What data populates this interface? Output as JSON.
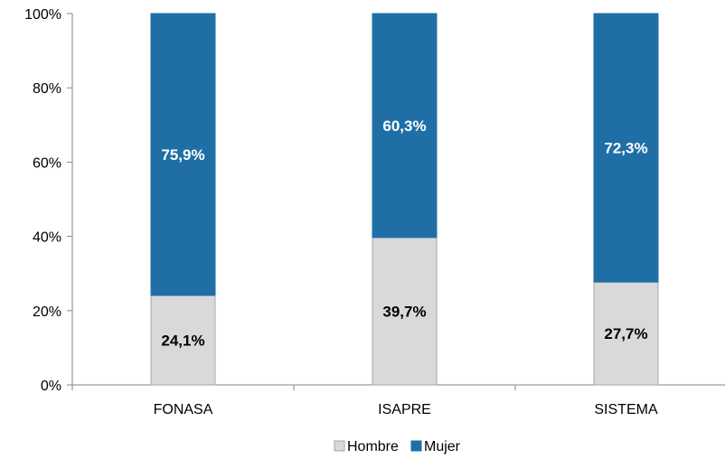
{
  "chart_data": {
    "type": "bar",
    "stacked": true,
    "categories": [
      "FONASA",
      "ISAPRE",
      "SISTEMA"
    ],
    "series": [
      {
        "name": "Hombre",
        "values": [
          24.1,
          39.7,
          27.7
        ],
        "labels": [
          "24,1%",
          "39,7%",
          "27,7%"
        ],
        "color": "#d9d9d9",
        "stroke": "#a6a6a6",
        "label_color": "#000000"
      },
      {
        "name": "Mujer",
        "values": [
          75.9,
          60.3,
          72.3
        ],
        "labels": [
          "75,9%",
          "60,3%",
          "72,3%"
        ],
        "color": "#1f6fa6",
        "stroke": "#1f6fa6",
        "label_color": "#ffffff"
      }
    ],
    "yticks": [
      "0%",
      "20%",
      "40%",
      "60%",
      "80%",
      "100%"
    ],
    "ylim": [
      0,
      100
    ],
    "grid": false,
    "legend_position": "bottom",
    "title": "",
    "xlabel": "",
    "ylabel": ""
  }
}
